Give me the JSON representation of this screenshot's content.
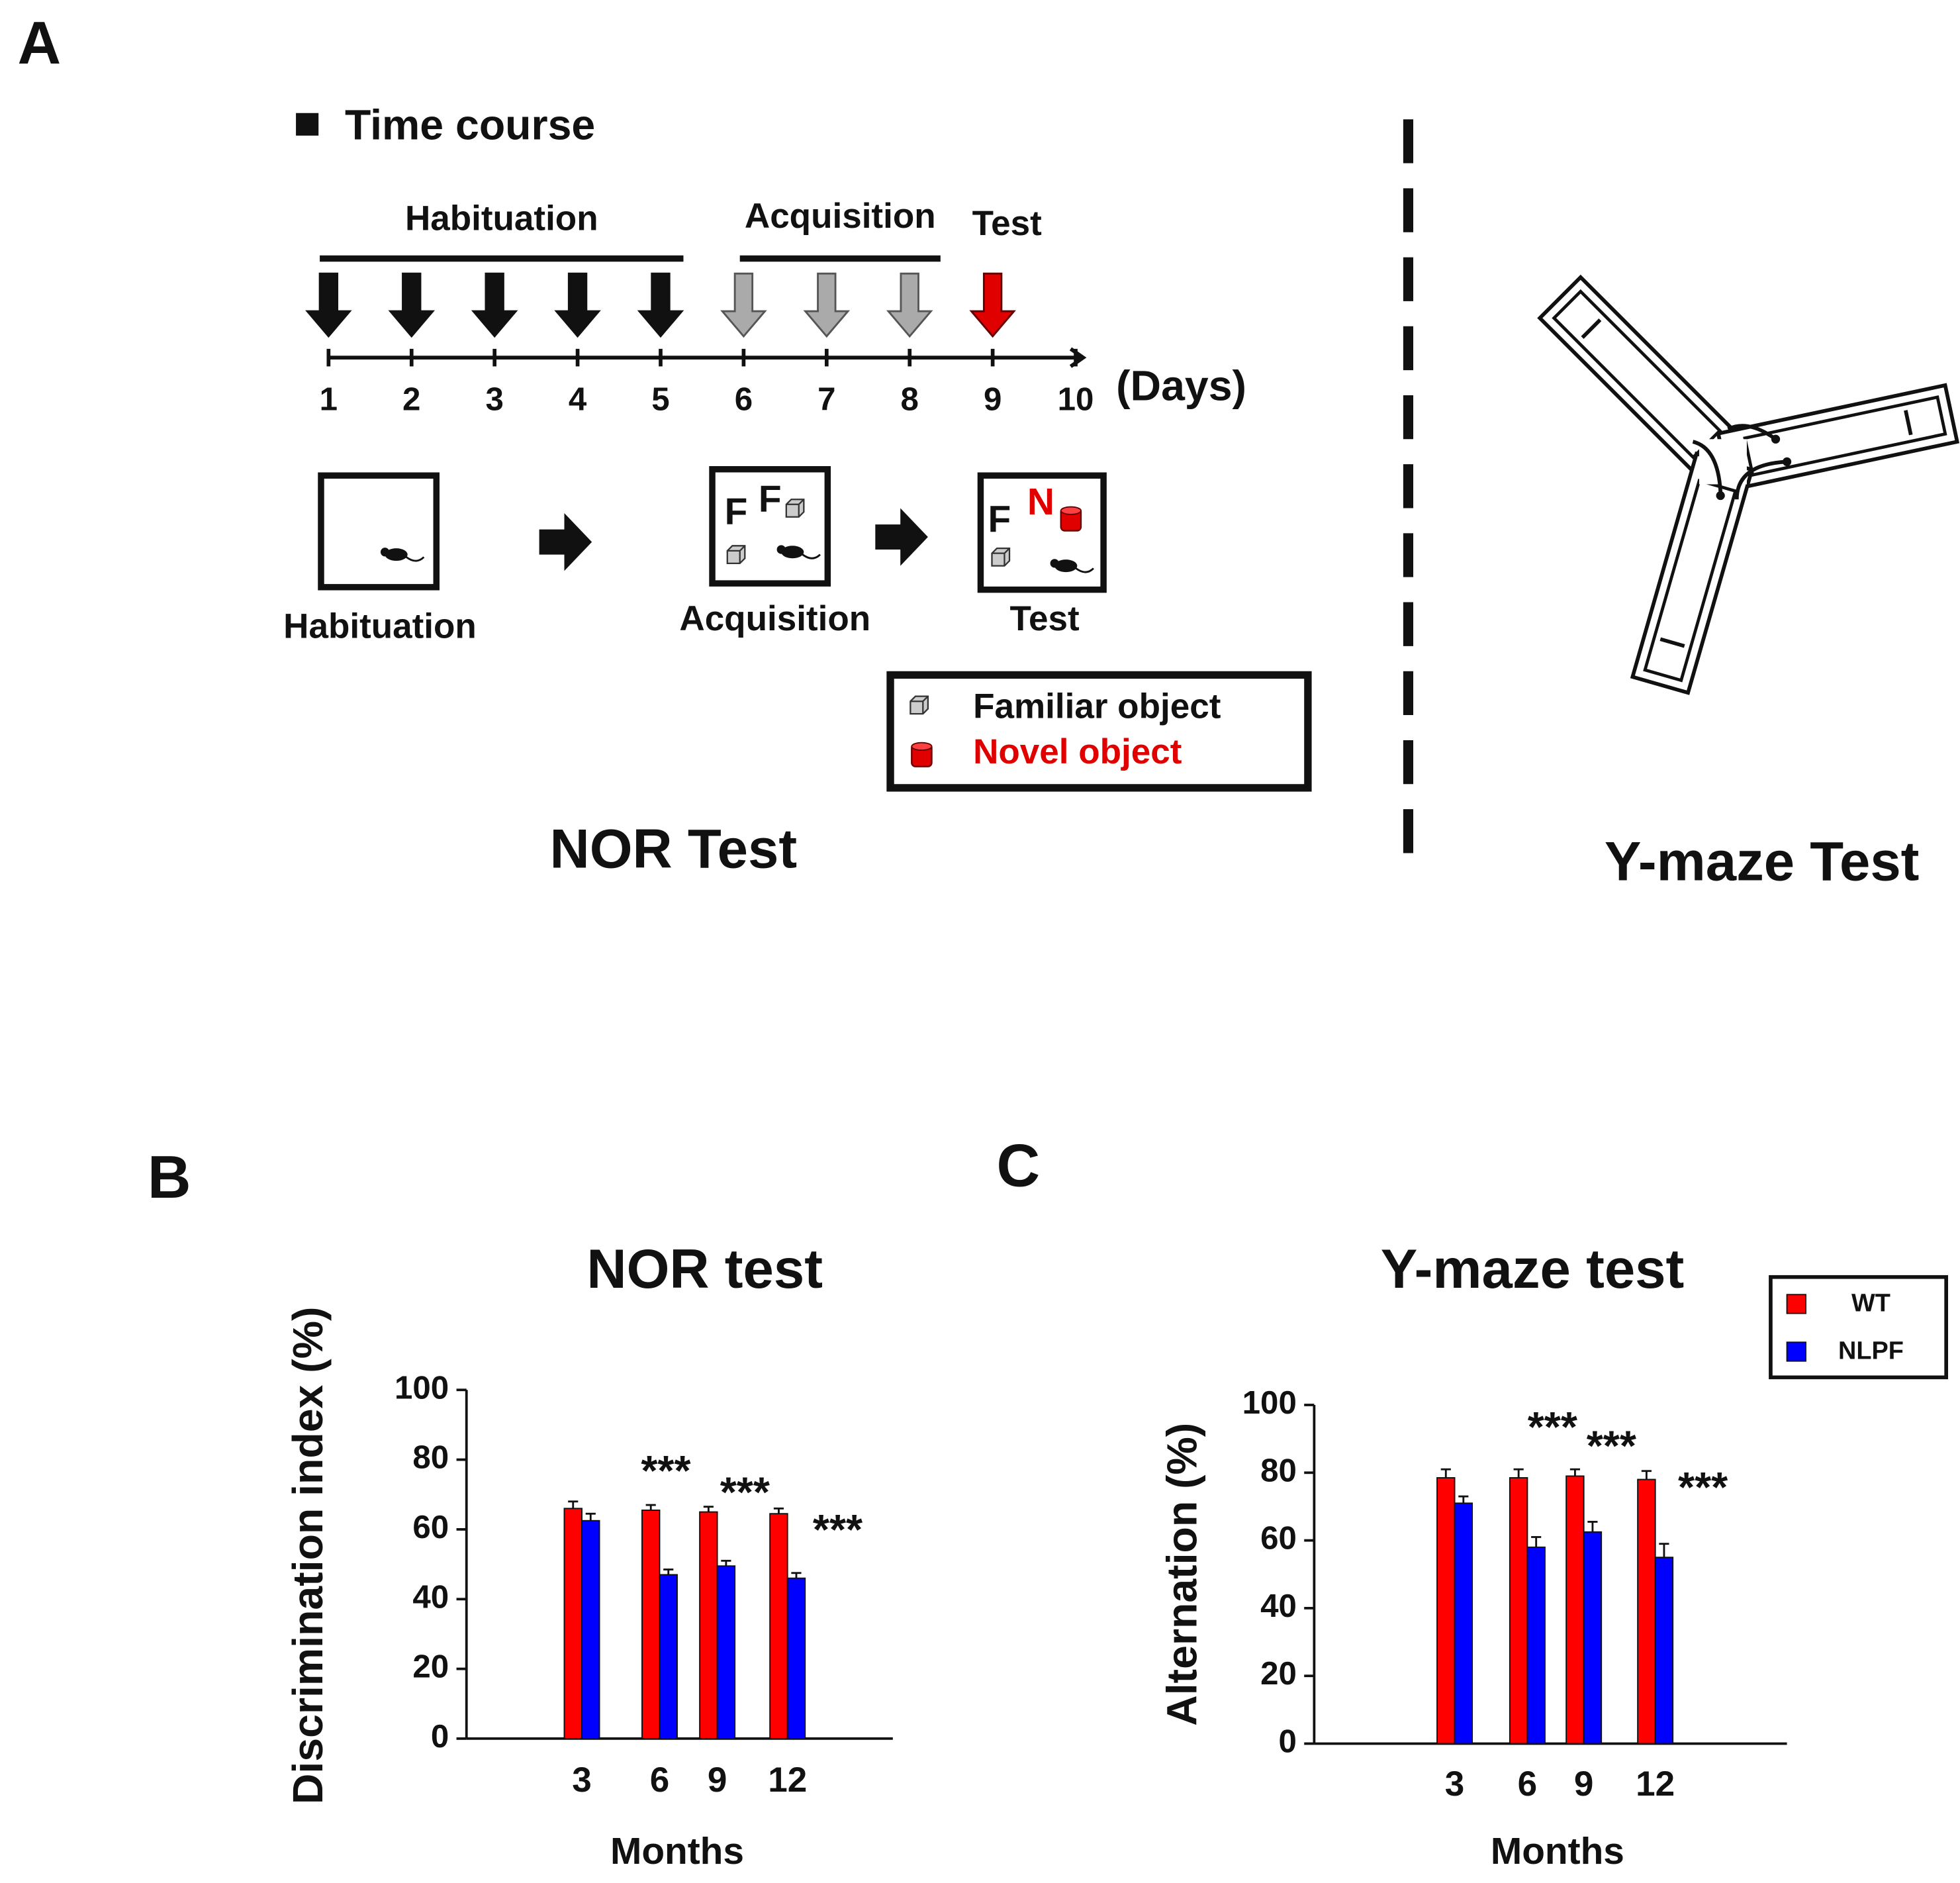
{
  "panel_a": {
    "label": "A",
    "time_course": "Time course",
    "phases": [
      "Habituation",
      "Acquisition",
      "Test"
    ],
    "days": [
      1,
      2,
      3,
      4,
      5,
      6,
      7,
      8,
      9,
      10
    ],
    "days_unit": "(Days)",
    "stages": [
      "Habituation",
      "Acquisition",
      "Test"
    ],
    "object_marks": {
      "familiar": "F",
      "novel": "N"
    },
    "legend": [
      "Familiar object",
      "Novel object"
    ],
    "nor_caption": "NOR Test",
    "ymaze_caption": "Y-maze Test"
  },
  "chart_data": [
    {
      "type": "bar",
      "panel": "B",
      "title": "NOR test",
      "y_label": "Discrimination index (%)",
      "x_label": "Months",
      "categories": [
        "3",
        "6",
        "9",
        "12"
      ],
      "series": [
        {
          "color": "#ff0000",
          "values": [
            66,
            65.5,
            65,
            64.5
          ],
          "errors": [
            2,
            1.5,
            1.5,
            1.5
          ]
        },
        {
          "color": "#0000ff",
          "values": [
            62.5,
            47,
            49.5,
            46
          ],
          "errors": [
            2,
            1.5,
            1.5,
            1.5
          ]
        }
      ],
      "significance": [
        null,
        "***",
        "***",
        "***"
      ],
      "ylim": [
        0,
        100
      ],
      "yticks": [
        0,
        20,
        40,
        60,
        80,
        100
      ],
      "grid": false
    },
    {
      "type": "bar",
      "panel": "C",
      "title": "Y-maze test",
      "y_label": "Alternation (%)",
      "x_label": "Months",
      "categories": [
        "3",
        "6",
        "9",
        "12"
      ],
      "series": [
        {
          "name": "WT",
          "color": "#ff0000",
          "values": [
            78.5,
            78.5,
            79,
            78
          ],
          "errors": [
            2.5,
            2.5,
            2,
            2.5
          ]
        },
        {
          "name": "NLPF",
          "color": "#0000ff",
          "values": [
            71,
            58,
            62.5,
            55
          ],
          "errors": [
            2,
            3,
            3,
            4
          ]
        }
      ],
      "significance": [
        null,
        "***",
        "***",
        "***"
      ],
      "ylim": [
        0,
        100
      ],
      "yticks": [
        0,
        20,
        40,
        60,
        80,
        100
      ],
      "grid": false,
      "legend": "top-right"
    }
  ]
}
